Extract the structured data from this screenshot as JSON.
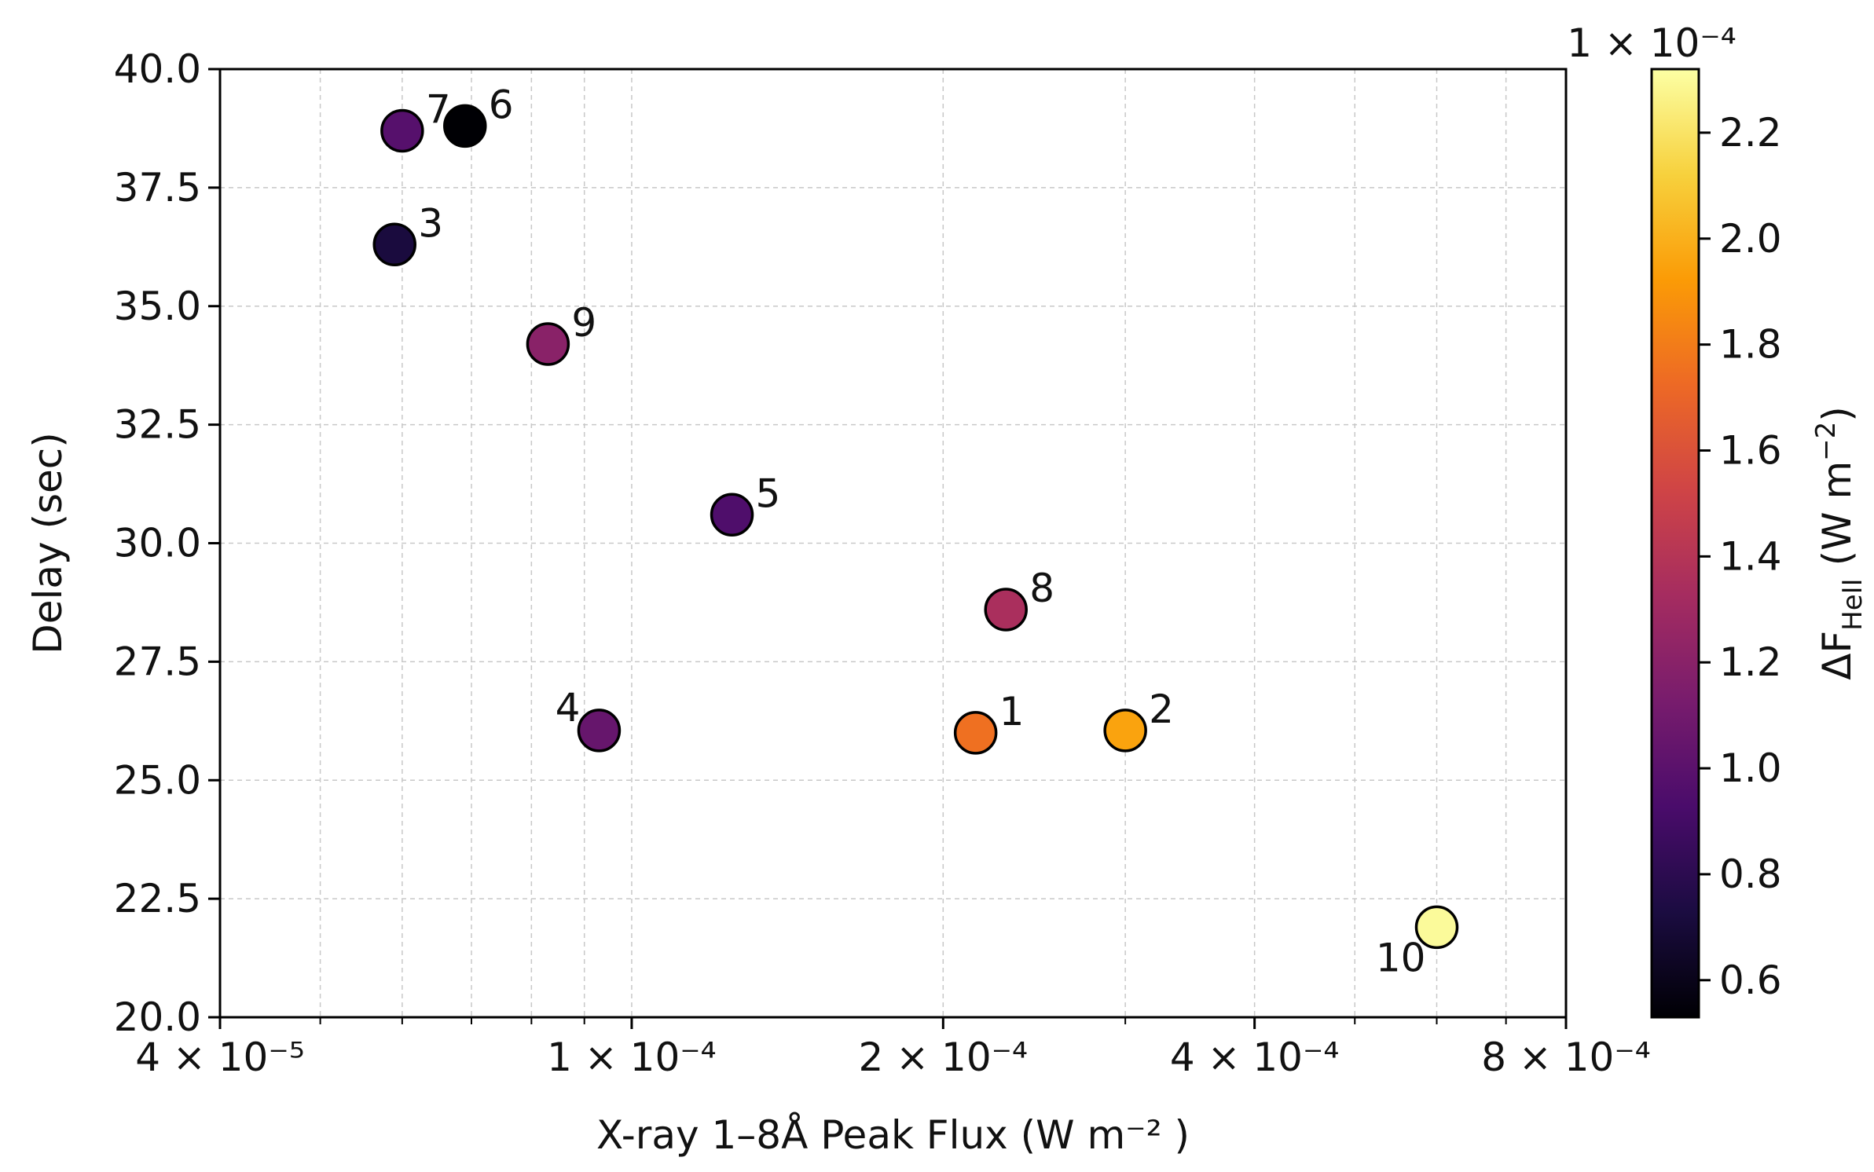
{
  "chart_data": {
    "type": "scatter",
    "title": "",
    "xlabel": "X-ray 1–8Å Peak Flux (W m⁻² )",
    "ylabel": "Delay (sec)",
    "xscale": "log",
    "xlim": [
      4e-05,
      0.0008
    ],
    "ylim": [
      20.0,
      40.0
    ],
    "grid": true,
    "x_ticks": [
      {
        "value": 4e-05,
        "label": "4 × 10⁻⁵"
      },
      {
        "value": 0.0001,
        "label": "1 × 10⁻⁴"
      },
      {
        "value": 0.0002,
        "label": "2 × 10⁻⁴"
      },
      {
        "value": 0.0004,
        "label": "4 × 10⁻⁴"
      },
      {
        "value": 0.0008,
        "label": "8 × 10⁻⁴"
      }
    ],
    "x_minor_ticks": [
      5e-05,
      6e-05,
      7e-05,
      8e-05,
      9e-05,
      0.0003,
      0.0005,
      0.0006,
      0.0007
    ],
    "y_ticks": [
      {
        "value": 20.0,
        "label": "20.0"
      },
      {
        "value": 22.5,
        "label": "22.5"
      },
      {
        "value": 25.0,
        "label": "25.0"
      },
      {
        "value": 27.5,
        "label": "27.5"
      },
      {
        "value": 30.0,
        "label": "30.0"
      },
      {
        "value": 32.5,
        "label": "32.5"
      },
      {
        "value": 35.0,
        "label": "35.0"
      },
      {
        "value": 37.5,
        "label": "37.5"
      },
      {
        "value": 40.0,
        "label": "40.0"
      }
    ],
    "colorbar": {
      "label": "ΔF",
      "label_sub": "HeII",
      "label_unit_main": " (W m",
      "label_unit_sup": "−2",
      "label_unit_end": ")",
      "offset_label": "1 × 10⁻⁴",
      "range": [
        0.53,
        2.32
      ],
      "colormap": "inferno",
      "colormap_stops": [
        "#000004",
        "#1b0c41",
        "#4a0c6b",
        "#781c6d",
        "#a52c60",
        "#cf4446",
        "#ed6925",
        "#fb9b06",
        "#f7d13d",
        "#fcffa4"
      ],
      "ticks": [
        {
          "value": 0.6,
          "label": "0.6"
        },
        {
          "value": 0.8,
          "label": "0.8"
        },
        {
          "value": 1.0,
          "label": "1.0"
        },
        {
          "value": 1.2,
          "label": "1.2"
        },
        {
          "value": 1.4,
          "label": "1.4"
        },
        {
          "value": 1.6,
          "label": "1.6"
        },
        {
          "value": 1.8,
          "label": "1.8"
        },
        {
          "value": 2.0,
          "label": "2.0"
        },
        {
          "value": 2.2,
          "label": "2.2"
        }
      ]
    },
    "points": [
      {
        "label": "1",
        "x": 0.000215,
        "y": 26.0,
        "c": 1.75,
        "label_pos": "upper-right"
      },
      {
        "label": "2",
        "x": 0.0003,
        "y": 26.05,
        "c": 1.95,
        "label_pos": "upper-right"
      },
      {
        "label": "3",
        "x": 5.9e-05,
        "y": 36.3,
        "c": 0.72,
        "label_pos": "upper-right"
      },
      {
        "label": "4",
        "x": 9.3e-05,
        "y": 26.05,
        "c": 1.05,
        "label_pos": "upper-left"
      },
      {
        "label": "5",
        "x": 0.000125,
        "y": 30.6,
        "c": 0.95,
        "label_pos": "upper-right"
      },
      {
        "label": "6",
        "x": 6.9e-05,
        "y": 38.8,
        "c": 0.53,
        "label_pos": "upper-right"
      },
      {
        "label": "7",
        "x": 6e-05,
        "y": 38.7,
        "c": 0.98,
        "label_pos": "upper-right"
      },
      {
        "label": "8",
        "x": 0.00023,
        "y": 28.6,
        "c": 1.35,
        "label_pos": "upper-right"
      },
      {
        "label": "9",
        "x": 8.3e-05,
        "y": 34.2,
        "c": 1.2,
        "label_pos": "upper-right"
      },
      {
        "label": "10",
        "x": 0.0006,
        "y": 21.9,
        "c": 2.3,
        "label_pos": "lower-left"
      }
    ]
  }
}
